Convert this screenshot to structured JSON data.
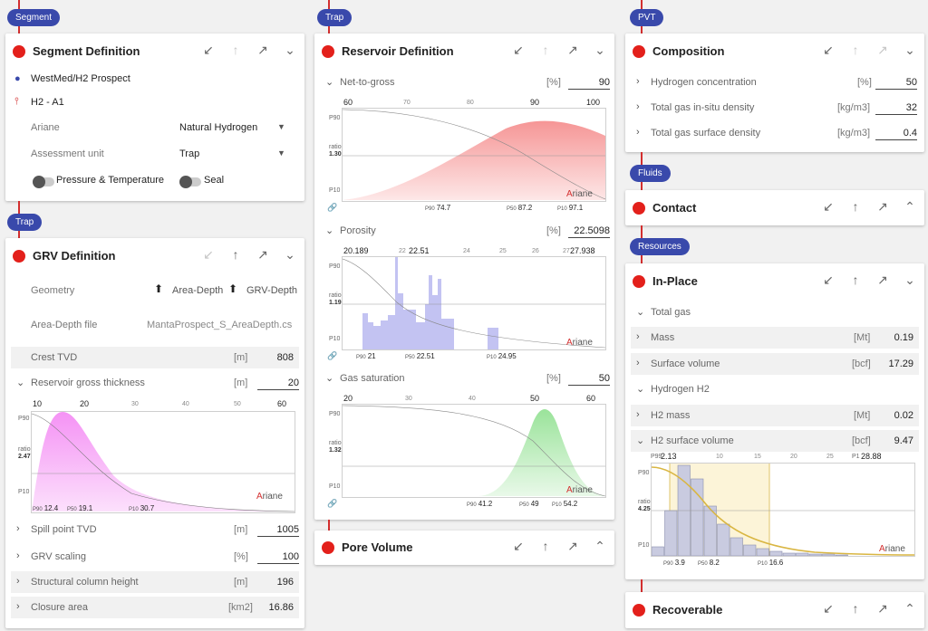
{
  "pills": {
    "segment": "Segment",
    "trap1": "Trap",
    "trap2": "Trap",
    "pvt": "PVT",
    "fluids": "Fluids",
    "resources": "Resources"
  },
  "segment": {
    "title": "Segment Definition",
    "prospect": "WestMed/H2 Prospect",
    "segment_name": "H2 - A1",
    "ariane_label": "Ariane",
    "ariane_value": "Natural Hydrogen",
    "unit_label": "Assessment unit",
    "unit_value": "Trap",
    "toggle1": "Pressure & Temperature",
    "toggle2": "Seal"
  },
  "grv": {
    "title": "GRV Definition",
    "geometry_label": "Geometry",
    "btn_area": "Area-Depth",
    "btn_grv": "GRV-Depth",
    "file_label": "Area-Depth file",
    "file_value": "MantaProspect_S_AreaDepth.cs",
    "crest_label": "Crest TVD",
    "crest_unit": "[m]",
    "crest_value": "808",
    "thick_label": "Reservoir gross thickness",
    "thick_unit": "[m]",
    "thick_value": "20",
    "spill_label": "Spill point TVD",
    "spill_unit": "[m]",
    "spill_value": "1005",
    "scaling_label": "GRV scaling",
    "scaling_unit": "[%]",
    "scaling_value": "100",
    "column_label": "Structural column height",
    "column_unit": "[m]",
    "column_value": "196",
    "closure_label": "Closure area",
    "closure_unit": "[km2]",
    "closure_value": "16.86",
    "chart": {
      "top_ticks": [
        "10",
        "20"
      ],
      "gray_ticks": [
        "30",
        "40",
        "50"
      ],
      "right_tick": "60",
      "p90_label": "P90",
      "ratio_label": "ratio",
      "ratio_value": "2.47",
      "p10_label": "P10",
      "p90": "12.4",
      "p50": "19.1",
      "p10": "30.7",
      "ariane_a": "A",
      "ariane_rest": "riane"
    }
  },
  "reservoir": {
    "title": "Reservoir Definition",
    "ntg_label": "Net-to-gross",
    "ntg_unit": "[%]",
    "ntg_value": "90",
    "ntg_chart": {
      "left": "60",
      "g1": "70",
      "g2": "80",
      "mid": "90",
      "right": "100",
      "ratio_value": "1.30",
      "p90": "74.7",
      "p50": "87.2",
      "p10": "97.1"
    },
    "por_label": "Porosity",
    "por_unit": "[%]",
    "por_value": "22.5098",
    "por_chart": {
      "left": "20.189",
      "g0": "22",
      "mid": "22.51",
      "g1": "24",
      "g2": "25",
      "g3": "26",
      "g4": "27",
      "right": "27.938",
      "ratio_value": "1.19",
      "p90": "21",
      "p50": "22.51",
      "p10": "24.95"
    },
    "gas_label": "Gas saturation",
    "gas_unit": "[%]",
    "gas_value": "50",
    "gas_chart": {
      "left": "20",
      "g1": "30",
      "g2": "40",
      "mid": "50",
      "right": "60",
      "ratio_value": "1.32",
      "p90": "41.2",
      "p50": "49",
      "p10": "54.2"
    },
    "common": {
      "p90_label": "P90",
      "ratio_label": "ratio",
      "p10_label": "P10",
      "ariane_a": "A",
      "ariane_rest": "riane",
      "p50_label": "P50"
    }
  },
  "pore": {
    "title": "Pore Volume"
  },
  "composition": {
    "title": "Composition",
    "h2_label": "Hydrogen concentration",
    "h2_unit": "[%]",
    "h2_value": "50",
    "tgi_label": "Total gas in-situ density",
    "tgi_unit": "[kg/m3]",
    "tgi_value": "32",
    "tgs_label": "Total gas surface density",
    "tgs_unit": "[kg/m3]",
    "tgs_value": "0.4"
  },
  "contact": {
    "title": "Contact"
  },
  "inplace": {
    "title": "In-Place",
    "total_gas": "Total gas",
    "mass_label": "Mass",
    "mass_unit": "[Mt]",
    "mass_value": "0.19",
    "sv_label": "Surface volume",
    "sv_unit": "[bcf]",
    "sv_value": "17.29",
    "h2_label": "Hydrogen H2",
    "h2mass_label": "H2 mass",
    "h2mass_unit": "[Mt]",
    "h2mass_value": "0.02",
    "h2sv_label": "H2 surface volume",
    "h2sv_unit": "[bcf]",
    "h2sv_value": "9.47",
    "chart": {
      "p99": "P99",
      "left": "2.13",
      "g1": "10",
      "g2": "15",
      "g3": "20",
      "g4": "25",
      "p1": "P1",
      "right": "28.88",
      "p90_label": "P90",
      "ratio_label": "ratio",
      "ratio_value": "4.25",
      "p10_label": "P10",
      "p90": "3.9",
      "p50": "8.2",
      "p10": "16.6",
      "ariane_a": "A",
      "ariane_rest": "riane",
      "hist": [
        0.1,
        0.5,
        1.0,
        0.85,
        0.55,
        0.35,
        0.2,
        0.12,
        0.08,
        0.05,
        0.03,
        0.03,
        0.02,
        0.02,
        0.01
      ]
    }
  },
  "recoverable": {
    "title": "Recoverable"
  },
  "colors": {
    "accent": "#e3201b",
    "pill": "#3949ab",
    "link": "#3b5bdb"
  }
}
